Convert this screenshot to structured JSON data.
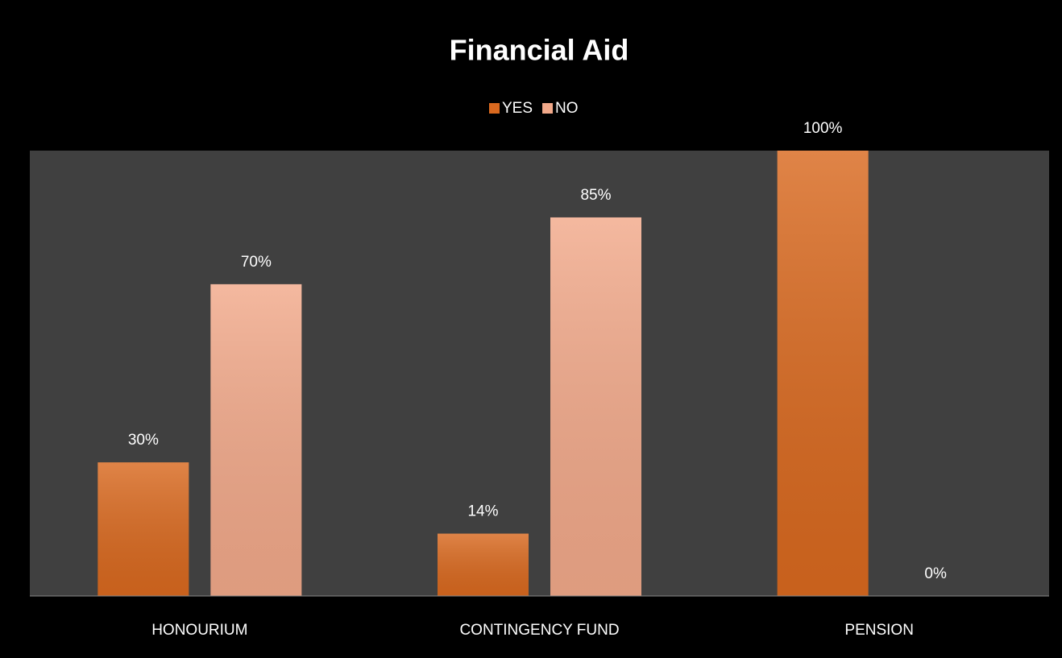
{
  "chart_data": {
    "type": "bar",
    "title": "Financial Aid",
    "categories": [
      "HONOURIUM",
      "CONTINGENCY FUND",
      "PENSION"
    ],
    "series": [
      {
        "name": "YES",
        "color": "#d9691f",
        "values": [
          30,
          14,
          100
        ],
        "value_labels": [
          "30%",
          "14%",
          "100%"
        ]
      },
      {
        "name": "NO",
        "color": "#f2a98a",
        "values": [
          70,
          85,
          0
        ],
        "value_labels": [
          "70%",
          "85%",
          "0%"
        ]
      }
    ],
    "ylim": [
      0,
      100
    ],
    "legend": "top"
  }
}
